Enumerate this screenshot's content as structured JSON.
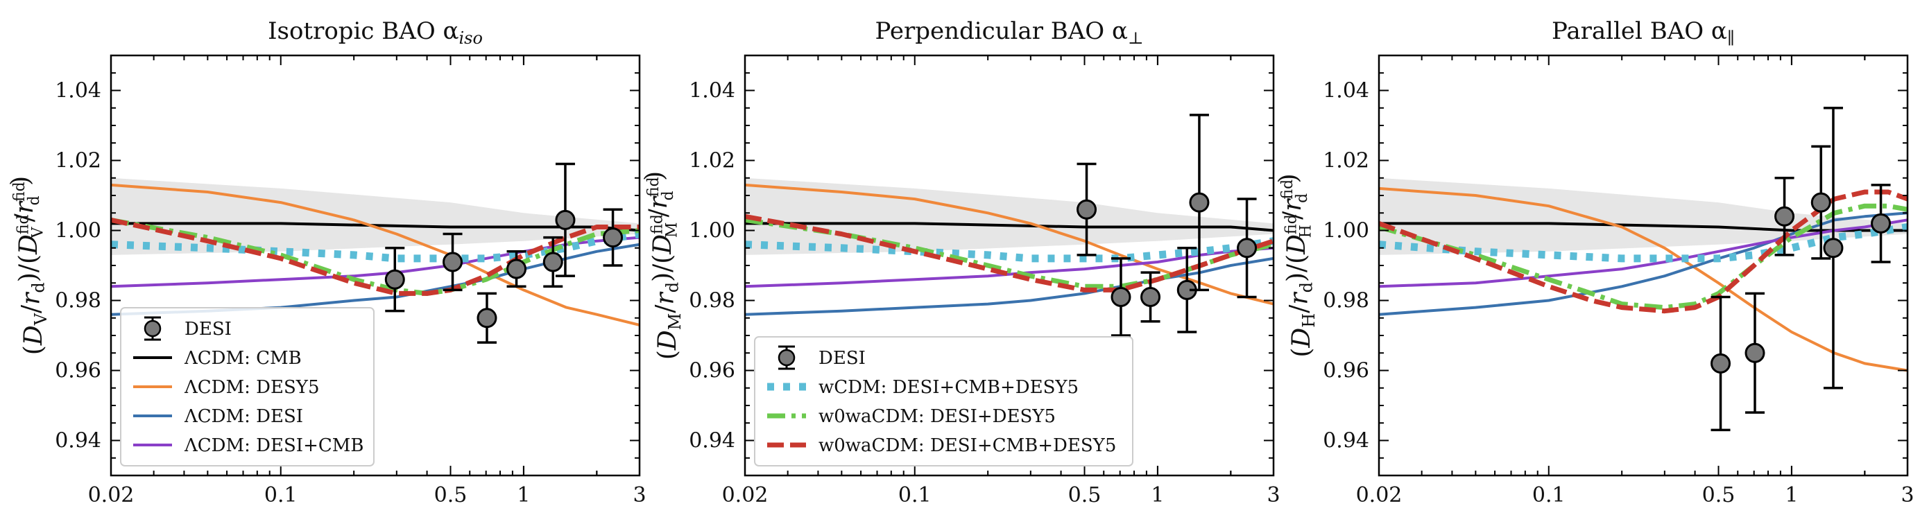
{
  "colors": {
    "cmb": "#000000",
    "desy5": "#f0883a",
    "desi": "#3a72ad",
    "desicmb": "#8a3fc8",
    "wcdm": "#5bbcd6",
    "w0wa_desi_desy5": "#6cc94e",
    "w0wa_all": "#c8382e",
    "band": "#e6e6e6",
    "marker": "#7a7a7a"
  },
  "chart_data": [
    {
      "type": "line",
      "title": "Isotropic BAO α_iso",
      "title_main": "Isotropic BAO α",
      "title_sub": "iso",
      "ylabel": "(D_V/r_d)/(D_V^fid/r_d^fid)",
      "ylabel_letter": "V",
      "xlabel": "",
      "xscale": "log",
      "xlim": [
        0.02,
        3
      ],
      "ylim": [
        0.93,
        1.05
      ],
      "x_tick_labels": [
        "0.02",
        "0.1",
        "0.5",
        "1",
        "3"
      ],
      "x_ticks": [
        0.02,
        0.1,
        0.5,
        1,
        3
      ],
      "y_tick_labels": [
        "0.94",
        "0.96",
        "0.98",
        "1.00",
        "1.02",
        "1.04"
      ],
      "y_ticks": [
        0.94,
        0.96,
        0.98,
        1.0,
        1.02,
        1.04
      ],
      "legend_position": "bottom-left",
      "band": {
        "x": [
          0.02,
          0.1,
          0.5,
          1,
          3
        ],
        "low": [
          0.993,
          0.994,
          0.996,
          0.997,
          0.999
        ],
        "high": [
          1.015,
          1.012,
          1.008,
          1.005,
          1.002
        ]
      },
      "data_points": {
        "name": "DESI",
        "x": [
          0.295,
          0.51,
          0.706,
          0.934,
          1.321,
          1.484,
          2.33
        ],
        "y": [
          0.986,
          0.991,
          0.975,
          0.989,
          0.991,
          1.003,
          0.998
        ],
        "err": [
          0.009,
          0.008,
          0.007,
          0.005,
          0.007,
          0.016,
          0.008
        ]
      },
      "series": [
        {
          "name": "ΛCDM: CMB",
          "style": "solid",
          "color_key": "cmb",
          "x": [
            0.02,
            0.1,
            0.5,
            1,
            2,
            3
          ],
          "y": [
            1.002,
            1.002,
            1.001,
            1.001,
            1.001,
            1.0
          ]
        },
        {
          "name": "ΛCDM: DESY5",
          "style": "solid",
          "color_key": "desy5",
          "x": [
            0.02,
            0.05,
            0.1,
            0.2,
            0.3,
            0.5,
            0.7,
            1,
            1.5,
            2,
            3
          ],
          "y": [
            1.013,
            1.011,
            1.008,
            1.003,
            0.999,
            0.993,
            0.988,
            0.983,
            0.978,
            0.976,
            0.973
          ]
        },
        {
          "name": "ΛCDM: DESI",
          "style": "solid",
          "color_key": "desi",
          "x": [
            0.02,
            0.05,
            0.1,
            0.2,
            0.3,
            0.5,
            0.7,
            1,
            1.5,
            2,
            3
          ],
          "y": [
            0.976,
            0.977,
            0.978,
            0.98,
            0.981,
            0.984,
            0.986,
            0.989,
            0.992,
            0.994,
            0.996
          ]
        },
        {
          "name": "ΛCDM: DESI+CMB",
          "style": "solid",
          "color_key": "desicmb",
          "x": [
            0.02,
            0.05,
            0.1,
            0.2,
            0.3,
            0.5,
            0.7,
            1,
            1.5,
            2,
            3
          ],
          "y": [
            0.984,
            0.985,
            0.986,
            0.987,
            0.988,
            0.99,
            0.992,
            0.994,
            0.996,
            0.997,
            0.998
          ]
        },
        {
          "name": "",
          "style": "dotted",
          "color_key": "wcdm",
          "x": [
            0.02,
            0.05,
            0.1,
            0.2,
            0.3,
            0.5,
            0.7,
            1,
            1.5,
            2,
            3
          ],
          "y": [
            0.996,
            0.995,
            0.994,
            0.993,
            0.992,
            0.992,
            0.992,
            0.993,
            0.995,
            0.997,
            0.999
          ]
        },
        {
          "name": "",
          "style": "dashdot",
          "color_key": "w0wa_desi_desy5",
          "x": [
            0.02,
            0.05,
            0.1,
            0.2,
            0.3,
            0.4,
            0.5,
            0.7,
            1,
            1.5,
            2,
            3
          ],
          "y": [
            1.003,
            0.998,
            0.993,
            0.986,
            0.983,
            0.982,
            0.983,
            0.986,
            0.991,
            0.996,
            0.999,
            1.0
          ]
        },
        {
          "name": "",
          "style": "dashed",
          "color_key": "w0wa_all",
          "x": [
            0.02,
            0.05,
            0.1,
            0.2,
            0.3,
            0.4,
            0.5,
            0.7,
            1,
            1.5,
            2,
            3
          ],
          "y": [
            1.003,
            0.997,
            0.992,
            0.985,
            0.982,
            0.982,
            0.983,
            0.987,
            0.993,
            0.998,
            1.001,
            1.001
          ]
        }
      ],
      "legend": [
        {
          "label": "DESI",
          "kind": "marker"
        },
        {
          "label": "ΛCDM: CMB",
          "kind": "line",
          "color_key": "cmb",
          "style": "solid"
        },
        {
          "label": "ΛCDM: DESY5",
          "kind": "line",
          "color_key": "desy5",
          "style": "solid"
        },
        {
          "label": "ΛCDM: DESI",
          "kind": "line",
          "color_key": "desi",
          "style": "solid"
        },
        {
          "label": "ΛCDM: DESI+CMB",
          "kind": "line",
          "color_key": "desicmb",
          "style": "solid"
        }
      ]
    },
    {
      "type": "line",
      "title": "Perpendicular BAO α_⊥",
      "title_main": "Perpendicular BAO α",
      "title_sub": "⊥",
      "ylabel": "(D_M/r_d)/(D_M^fid/r_d^fid)",
      "ylabel_letter": "M",
      "xlabel": "",
      "xscale": "log",
      "xlim": [
        0.02,
        3
      ],
      "ylim": [
        0.93,
        1.05
      ],
      "x_tick_labels": [
        "0.02",
        "0.1",
        "0.5",
        "1",
        "3"
      ],
      "x_ticks": [
        0.02,
        0.1,
        0.5,
        1,
        3
      ],
      "y_tick_labels": [
        "0.94",
        "0.96",
        "0.98",
        "1.00",
        "1.02",
        "1.04"
      ],
      "y_ticks": [
        0.94,
        0.96,
        0.98,
        1.0,
        1.02,
        1.04
      ],
      "legend_position": "bottom-left",
      "band": {
        "x": [
          0.02,
          0.1,
          0.5,
          1,
          3
        ],
        "low": [
          0.993,
          0.994,
          0.996,
          0.997,
          0.999
        ],
        "high": [
          1.015,
          1.012,
          1.008,
          1.005,
          1.002
        ]
      },
      "data_points": {
        "name": "DESI",
        "x": [
          0.51,
          0.706,
          0.934,
          1.321,
          1.484,
          2.33
        ],
        "y": [
          1.006,
          0.981,
          0.981,
          0.983,
          1.008,
          0.995
        ],
        "err": [
          0.013,
          0.011,
          0.007,
          0.012,
          0.025,
          0.014
        ]
      },
      "series": [
        {
          "name": "",
          "style": "solid",
          "color_key": "cmb",
          "x": [
            0.02,
            0.1,
            0.5,
            1,
            2,
            3
          ],
          "y": [
            1.002,
            1.002,
            1.001,
            1.001,
            1.001,
            1.0
          ]
        },
        {
          "name": "",
          "style": "solid",
          "color_key": "desy5",
          "x": [
            0.02,
            0.05,
            0.1,
            0.2,
            0.3,
            0.5,
            0.7,
            1,
            1.5,
            2,
            3
          ],
          "y": [
            1.013,
            1.011,
            1.009,
            1.005,
            1.002,
            0.997,
            0.993,
            0.989,
            0.985,
            0.982,
            0.979
          ]
        },
        {
          "name": "",
          "style": "solid",
          "color_key": "desi",
          "x": [
            0.02,
            0.05,
            0.1,
            0.2,
            0.3,
            0.5,
            0.7,
            1,
            1.5,
            2,
            3
          ],
          "y": [
            0.976,
            0.977,
            0.978,
            0.979,
            0.98,
            0.982,
            0.984,
            0.986,
            0.988,
            0.99,
            0.992
          ]
        },
        {
          "name": "",
          "style": "solid",
          "color_key": "desicmb",
          "x": [
            0.02,
            0.05,
            0.1,
            0.2,
            0.3,
            0.5,
            0.7,
            1,
            1.5,
            2,
            3
          ],
          "y": [
            0.984,
            0.985,
            0.986,
            0.987,
            0.988,
            0.989,
            0.99,
            0.991,
            0.993,
            0.994,
            0.995
          ]
        },
        {
          "name": "wCDM: DESI+CMB+DESY5",
          "style": "dotted",
          "color_key": "wcdm",
          "x": [
            0.02,
            0.05,
            0.1,
            0.2,
            0.3,
            0.5,
            0.7,
            1,
            1.5,
            2,
            3
          ],
          "y": [
            0.996,
            0.995,
            0.994,
            0.993,
            0.992,
            0.992,
            0.992,
            0.993,
            0.994,
            0.995,
            0.997
          ]
        },
        {
          "name": "w0waCDM: DESI+DESY5",
          "style": "dashdot",
          "color_key": "w0wa_desi_desy5",
          "x": [
            0.02,
            0.05,
            0.1,
            0.2,
            0.3,
            0.5,
            0.7,
            1,
            1.5,
            2,
            3
          ],
          "y": [
            1.003,
            0.999,
            0.995,
            0.99,
            0.987,
            0.984,
            0.984,
            0.986,
            0.99,
            0.993,
            0.996
          ]
        },
        {
          "name": "w0waCDM: DESI+CMB+DESY5",
          "style": "dashed",
          "color_key": "w0wa_all",
          "x": [
            0.02,
            0.05,
            0.1,
            0.2,
            0.3,
            0.5,
            0.7,
            1,
            1.5,
            2,
            3
          ],
          "y": [
            1.004,
            0.999,
            0.994,
            0.989,
            0.986,
            0.983,
            0.983,
            0.986,
            0.99,
            0.993,
            0.997
          ]
        }
      ],
      "legend": [
        {
          "label": "DESI",
          "kind": "marker"
        },
        {
          "label": "wCDM: DESI+CMB+DESY5",
          "kind": "line",
          "color_key": "wcdm",
          "style": "dotted"
        },
        {
          "label": "w0waCDM: DESI+DESY5",
          "kind": "line",
          "color_key": "w0wa_desi_desy5",
          "style": "dashdot"
        },
        {
          "label": "w0waCDM: DESI+CMB+DESY5",
          "kind": "line",
          "color_key": "w0wa_all",
          "style": "dashed"
        }
      ]
    },
    {
      "type": "line",
      "title": "Parallel BAO α_∥",
      "title_main": "Parallel BAO α",
      "title_sub": "∥",
      "ylabel": "(D_H/r_d)/(D_H^fid/r_d^fid)",
      "ylabel_letter": "H",
      "xlabel": "",
      "xscale": "log",
      "xlim": [
        0.02,
        3
      ],
      "ylim": [
        0.93,
        1.05
      ],
      "x_tick_labels": [
        "0.02",
        "0.1",
        "0.5",
        "1",
        "3"
      ],
      "x_ticks": [
        0.02,
        0.1,
        0.5,
        1,
        3
      ],
      "y_tick_labels": [
        "0.94",
        "0.96",
        "0.98",
        "1.00",
        "1.02",
        "1.04"
      ],
      "y_ticks": [
        0.94,
        0.96,
        0.98,
        1.0,
        1.02,
        1.04
      ],
      "legend_position": "none",
      "band": {
        "x": [
          0.02,
          0.1,
          0.5,
          1,
          3
        ],
        "low": [
          0.993,
          0.994,
          0.996,
          0.997,
          0.999
        ],
        "high": [
          1.015,
          1.012,
          1.008,
          1.005,
          1.002
        ]
      },
      "data_points": {
        "name": "DESI",
        "x": [
          0.51,
          0.706,
          0.934,
          1.321,
          1.484,
          2.33
        ],
        "y": [
          0.962,
          0.965,
          1.004,
          1.008,
          0.995,
          1.002
        ],
        "err": [
          0.019,
          0.017,
          0.011,
          0.016,
          0.04,
          0.011
        ]
      },
      "series": [
        {
          "name": "",
          "style": "solid",
          "color_key": "cmb",
          "x": [
            0.02,
            0.1,
            0.5,
            1,
            2,
            3
          ],
          "y": [
            1.002,
            1.002,
            1.001,
            1.0,
            1.0,
            1.0
          ]
        },
        {
          "name": "",
          "style": "solid",
          "color_key": "desy5",
          "x": [
            0.02,
            0.05,
            0.1,
            0.2,
            0.3,
            0.5,
            0.7,
            1,
            1.5,
            2,
            3
          ],
          "y": [
            1.012,
            1.01,
            1.007,
            1.001,
            0.995,
            0.985,
            0.978,
            0.971,
            0.965,
            0.962,
            0.96
          ]
        },
        {
          "name": "",
          "style": "solid",
          "color_key": "desi",
          "x": [
            0.02,
            0.05,
            0.1,
            0.2,
            0.3,
            0.5,
            0.7,
            1,
            1.5,
            2,
            3
          ],
          "y": [
            0.976,
            0.978,
            0.98,
            0.984,
            0.987,
            0.992,
            0.995,
            0.999,
            1.003,
            1.004,
            1.005
          ]
        },
        {
          "name": "",
          "style": "solid",
          "color_key": "desicmb",
          "x": [
            0.02,
            0.05,
            0.1,
            0.2,
            0.3,
            0.5,
            0.7,
            1,
            1.5,
            2,
            3
          ],
          "y": [
            0.984,
            0.985,
            0.987,
            0.989,
            0.991,
            0.994,
            0.996,
            0.998,
            1.0,
            1.001,
            1.003
          ]
        },
        {
          "name": "",
          "style": "dotted",
          "color_key": "wcdm",
          "x": [
            0.02,
            0.05,
            0.1,
            0.2,
            0.3,
            0.5,
            0.7,
            1,
            1.5,
            2,
            3
          ],
          "y": [
            0.996,
            0.994,
            0.993,
            0.992,
            0.992,
            0.992,
            0.993,
            0.995,
            0.998,
            0.999,
            1.001
          ]
        },
        {
          "name": "",
          "style": "dashdot",
          "color_key": "w0wa_desi_desy5",
          "x": [
            0.02,
            0.05,
            0.1,
            0.15,
            0.2,
            0.3,
            0.4,
            0.5,
            0.7,
            1,
            1.5,
            2,
            2.5,
            3
          ],
          "y": [
            1.001,
            0.993,
            0.986,
            0.982,
            0.979,
            0.978,
            0.979,
            0.982,
            0.99,
            0.998,
            1.005,
            1.007,
            1.007,
            1.006
          ]
        },
        {
          "name": "",
          "style": "dashed",
          "color_key": "w0wa_all",
          "x": [
            0.02,
            0.05,
            0.1,
            0.15,
            0.2,
            0.3,
            0.4,
            0.5,
            0.7,
            1,
            1.5,
            2,
            2.5,
            3
          ],
          "y": [
            1.002,
            0.992,
            0.984,
            0.98,
            0.978,
            0.977,
            0.978,
            0.981,
            0.99,
            1.0,
            1.009,
            1.011,
            1.011,
            1.009
          ]
        }
      ],
      "legend": []
    }
  ]
}
